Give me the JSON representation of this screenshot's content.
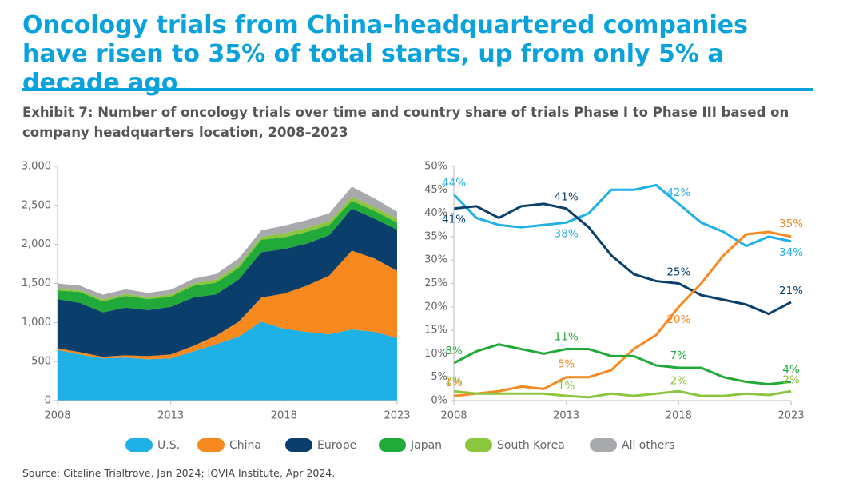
{
  "title": "Oncology trials from China-headquartered companies have risen to 35% of total starts, up from only 5% a decade ago",
  "subtitle": "Exhibit 7: Number of oncology trials over time and country share of trials Phase I to Phase III based on company headquarters location, 2008–2023",
  "source": "Source: Citeline Trialtrove, Jan 2024; IQVIA Institute, Apr 2024.",
  "chart_data": [
    {
      "type": "stacked_area",
      "x": [
        2008,
        2009,
        2010,
        2011,
        2012,
        2013,
        2014,
        2015,
        2016,
        2017,
        2018,
        2019,
        2020,
        2021,
        2022,
        2023
      ],
      "xlim": [
        2008,
        2023
      ],
      "xticks": [
        2008,
        2013,
        2018,
        2023
      ],
      "ylim": [
        0,
        3000
      ],
      "yticks": [
        0,
        500,
        {
          "value": 1000,
          "label": "1,000"
        },
        {
          "value": 1500,
          "label": "1,500"
        },
        {
          "value": 2000,
          "label": "2,000"
        },
        {
          "value": 2500,
          "label": "2,500"
        },
        {
          "value": 3000,
          "label": "3,000"
        }
      ],
      "grid": false,
      "series": [
        {
          "name": "U.S.",
          "color": "#1fb0e6",
          "values": [
            650,
            590,
            540,
            550,
            530,
            540,
            630,
            720,
            820,
            1010,
            920,
            880,
            850,
            910,
            880,
            800
          ]
        },
        {
          "name": "China",
          "color": "#f7891f",
          "values": [
            20,
            30,
            20,
            30,
            40,
            50,
            70,
            110,
            190,
            310,
            450,
            590,
            750,
            1010,
            940,
            860
          ]
        },
        {
          "name": "Europe",
          "color": "#0b3f6b",
          "values": [
            630,
            630,
            570,
            610,
            590,
            610,
            620,
            530,
            540,
            580,
            570,
            540,
            520,
            540,
            510,
            530
          ]
        },
        {
          "name": "Japan",
          "color": "#21a93a",
          "values": [
            110,
            140,
            140,
            150,
            140,
            130,
            150,
            150,
            150,
            160,
            150,
            150,
            130,
            100,
            100,
            90
          ]
        },
        {
          "name": "South Korea",
          "color": "#8cc63f",
          "values": [
            20,
            20,
            25,
            25,
            25,
            30,
            30,
            40,
            40,
            40,
            50,
            50,
            50,
            50,
            50,
            50
          ]
        },
        {
          "name": "All others",
          "color": "#a7a9ac",
          "values": [
            70,
            60,
            60,
            60,
            55,
            60,
            60,
            70,
            80,
            80,
            100,
            100,
            100,
            130,
            110,
            90
          ]
        }
      ]
    },
    {
      "type": "line",
      "x": [
        2008,
        2009,
        2010,
        2011,
        2012,
        2013,
        2014,
        2015,
        2016,
        2017,
        2018,
        2019,
        2020,
        2021,
        2022,
        2023
      ],
      "xlim": [
        2008,
        2023
      ],
      "xticks": [
        2008,
        2013,
        2018,
        2023
      ],
      "ylim": [
        0,
        50
      ],
      "yticks": [
        {
          "value": 0,
          "label": "0%"
        },
        {
          "value": 5,
          "label": "5%"
        },
        {
          "value": 10,
          "label": "10%"
        },
        {
          "value": 15,
          "label": "15%"
        },
        {
          "value": 20,
          "label": "20%"
        },
        {
          "value": 25,
          "label": "25%"
        },
        {
          "value": 30,
          "label": "30%"
        },
        {
          "value": 35,
          "label": "35%"
        },
        {
          "value": 40,
          "label": "40%"
        },
        {
          "value": 45,
          "label": "45%"
        },
        {
          "value": 50,
          "label": "50%"
        }
      ],
      "grid": false,
      "series": [
        {
          "color": "#1fb0e6",
          "values": [
            44,
            39,
            37.5,
            37,
            37.5,
            38,
            40,
            45,
            45,
            46,
            42,
            38,
            36,
            33,
            35,
            34
          ],
          "value_labels": [
            "44%",
            null,
            null,
            null,
            null,
            "38%",
            null,
            null,
            null,
            null,
            "42%",
            null,
            null,
            null,
            null,
            "34%"
          ]
        },
        {
          "color": "#0b3f6b",
          "values": [
            41,
            41.5,
            39,
            41.5,
            42,
            41,
            37,
            31,
            27,
            25.5,
            25,
            22.5,
            21.5,
            20.5,
            18.5,
            21
          ],
          "value_labels": [
            "41%",
            null,
            null,
            null,
            null,
            "41%",
            null,
            null,
            null,
            null,
            "25%",
            null,
            null,
            null,
            null,
            "21%"
          ]
        },
        {
          "color": "#f7891f",
          "values": [
            1,
            1.5,
            2,
            3,
            2.5,
            5,
            5,
            6.5,
            11,
            14,
            20,
            25,
            31,
            35.5,
            36,
            35
          ],
          "value_labels": [
            "1%",
            null,
            null,
            null,
            null,
            "5%",
            null,
            null,
            null,
            null,
            "20%",
            null,
            null,
            null,
            null,
            "35%"
          ]
        },
        {
          "color": "#21a93a",
          "values": [
            8,
            10.5,
            12,
            11,
            10,
            11,
            11,
            9.5,
            9.5,
            7.5,
            7,
            7,
            5,
            4,
            3.5,
            4
          ],
          "value_labels": [
            "8%",
            null,
            null,
            null,
            null,
            "11%",
            null,
            null,
            null,
            null,
            "7%",
            null,
            null,
            null,
            null,
            "4%"
          ]
        },
        {
          "color": "#8cc63f",
          "values": [
            2,
            1.5,
            1.5,
            1.5,
            1.5,
            1,
            0.7,
            1.5,
            1,
            1.5,
            2,
            1,
            1,
            1.5,
            1.2,
            2
          ],
          "value_labels": [
            "2%",
            null,
            null,
            null,
            null,
            "1%",
            null,
            null,
            null,
            null,
            "2%",
            null,
            null,
            null,
            null,
            "2%"
          ]
        }
      ]
    }
  ]
}
